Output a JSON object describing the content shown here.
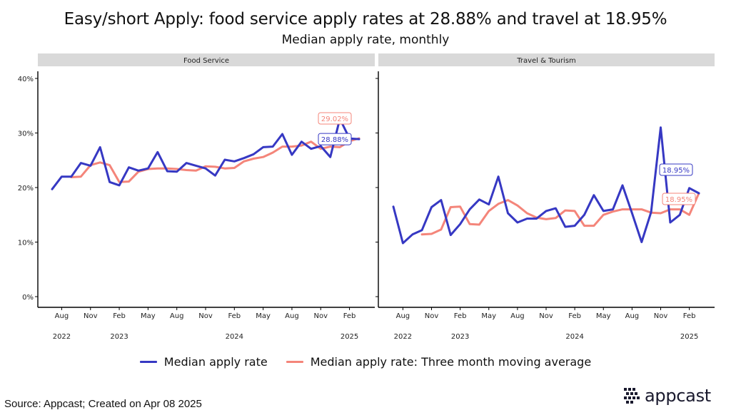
{
  "title": "Easy/short Apply: food service apply rates at 28.88% and travel at 18.95%",
  "subtitle": "Median apply rate, monthly",
  "source": "Source: Appcast; Created on Apr 08 2025",
  "logo": "appcast",
  "colors": {
    "series": "#3638c3",
    "moving_average": "#f4857a",
    "strip": "#d9d9d9"
  },
  "legend": {
    "series": "Median apply rate",
    "moving_average": "Median apply rate: Three month moving average"
  },
  "axes": {
    "y_ticks": [
      "0%",
      "10%",
      "20%",
      "30%",
      "40%"
    ],
    "x_month_ticks": [
      "Aug",
      "Nov",
      "Feb",
      "May",
      "Aug",
      "Nov",
      "Feb",
      "May",
      "Aug",
      "Nov",
      "Feb"
    ],
    "x_year_ticks": [
      "2022",
      "2023",
      "2024",
      "2025"
    ]
  },
  "chart_data": [
    {
      "type": "line",
      "panel": "Food Service",
      "ylim": [
        0,
        40
      ],
      "x": [
        "2022-07",
        "2022-08",
        "2022-09",
        "2022-10",
        "2022-11",
        "2022-12",
        "2023-01",
        "2023-02",
        "2023-03",
        "2023-04",
        "2023-05",
        "2023-06",
        "2023-07",
        "2023-08",
        "2023-09",
        "2023-10",
        "2023-11",
        "2023-12",
        "2024-01",
        "2024-02",
        "2024-03",
        "2024-04",
        "2024-05",
        "2024-06",
        "2024-07",
        "2024-08",
        "2024-09",
        "2024-10",
        "2024-11",
        "2024-12",
        "2025-01",
        "2025-02",
        "2025-03"
      ],
      "series": [
        {
          "name": "Median apply rate",
          "values": [
            19.7,
            22.0,
            22.0,
            24.5,
            24.0,
            27.4,
            21.0,
            20.4,
            23.7,
            23.1,
            23.5,
            26.5,
            23.0,
            22.9,
            24.5,
            24.0,
            23.5,
            22.2,
            25.1,
            24.8,
            25.4,
            26.1,
            27.4,
            27.5,
            29.8,
            26.0,
            28.4,
            27.1,
            27.6,
            25.6,
            32.6,
            29.0,
            28.88
          ]
        },
        {
          "name": "Median apply rate: Three month moving average",
          "values": [
            null,
            null,
            21.9,
            22.0,
            24.1,
            24.6,
            24.1,
            21.0,
            21.1,
            22.9,
            23.4,
            23.5,
            23.5,
            23.4,
            23.2,
            23.1,
            23.9,
            23.8,
            23.5,
            23.6,
            24.8,
            25.3,
            25.6,
            26.4,
            27.5,
            27.5,
            27.7,
            28.4,
            27.1,
            27.5,
            27.4,
            28.5,
            29.02
          ]
        }
      ],
      "end_labels": {
        "series": "28.88%",
        "moving_average": "29.02%"
      }
    },
    {
      "type": "line",
      "panel": "Travel & Tourism",
      "ylim": [
        0,
        40
      ],
      "x": [
        "2022-07",
        "2022-08",
        "2022-09",
        "2022-10",
        "2022-11",
        "2022-12",
        "2023-01",
        "2023-02",
        "2023-03",
        "2023-04",
        "2023-05",
        "2023-06",
        "2023-07",
        "2023-08",
        "2023-09",
        "2023-10",
        "2023-11",
        "2023-12",
        "2024-01",
        "2024-02",
        "2024-03",
        "2024-04",
        "2024-05",
        "2024-06",
        "2024-07",
        "2024-08",
        "2024-09",
        "2024-10",
        "2024-11",
        "2024-12",
        "2025-01",
        "2025-02",
        "2025-03"
      ],
      "series": [
        {
          "name": "Median apply rate",
          "values": [
            16.5,
            9.8,
            11.4,
            12.2,
            16.4,
            17.7,
            11.3,
            13.3,
            16.0,
            17.8,
            16.9,
            22.0,
            15.3,
            13.6,
            14.3,
            14.3,
            15.7,
            16.2,
            12.8,
            13.0,
            15.0,
            18.6,
            15.7,
            16.0,
            20.4,
            15.3,
            10.0,
            15.5,
            31.0,
            13.6,
            15.0,
            19.9,
            18.95
          ]
        },
        {
          "name": "Median apply rate: Three month moving average",
          "values": [
            null,
            null,
            null,
            11.4,
            11.5,
            12.3,
            16.4,
            16.5,
            13.3,
            13.2,
            15.7,
            17.0,
            17.7,
            16.7,
            15.3,
            14.5,
            14.2,
            14.4,
            15.8,
            15.7,
            13.0,
            13.0,
            15.0,
            15.6,
            16.0,
            16.0,
            16.0,
            15.4,
            15.3,
            16.0,
            16.0,
            15.0,
            18.95
          ]
        }
      ],
      "end_labels": {
        "series": "18.95%",
        "moving_average": "18.95%"
      }
    }
  ]
}
